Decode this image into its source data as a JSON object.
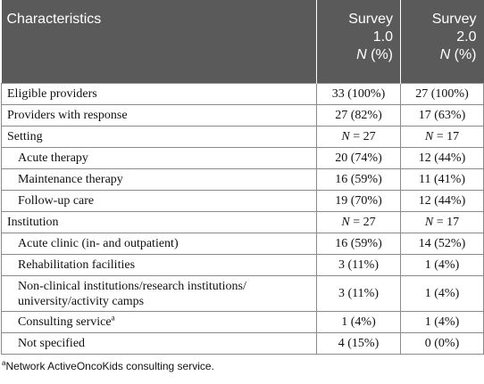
{
  "header": {
    "col1": "Characteristics",
    "col2_line1": "Survey",
    "col2_line2": "1.0",
    "col3_line1": "Survey",
    "col3_line2": "2.0",
    "n_label": "N",
    "pct_label": " (%)"
  },
  "rows": [
    {
      "label": "Eligible providers",
      "v1": "33 (100%)",
      "v2": "27 (100%)"
    },
    {
      "label": "Providers with response",
      "v1": "27 (82%)",
      "v2": "17 (63%)"
    },
    {
      "label": "Setting",
      "v1_n": "N",
      "v1_rest": " = 27",
      "v2_n": "N",
      "v2_rest": " = 17"
    },
    {
      "label": "Acute therapy",
      "v1": "20 (74%)",
      "v2": "12 (44%)"
    },
    {
      "label": "Maintenance therapy",
      "v1": "16 (59%)",
      "v2": "11 (41%)"
    },
    {
      "label": "Follow-up care",
      "v1": "19 (70%)",
      "v2": "12 (44%)"
    },
    {
      "label": "Institution",
      "v1_n": "N",
      "v1_rest": " = 27",
      "v2_n": "N",
      "v2_rest": " = 17"
    },
    {
      "label": "Acute clinic (in- and outpatient)",
      "v1": "16 (59%)",
      "v2": "14 (52%)"
    },
    {
      "label": "Rehabilitation facilities",
      "v1": "3 (11%)",
      "v2": "1 (4%)"
    },
    {
      "label_line1": "Non-clinical institutions/research institutions/",
      "label_line2": "university/activity camps",
      "v1": "3 (11%)",
      "v2": "1 (4%)"
    },
    {
      "label": "Consulting service",
      "sup": "a",
      "v1": "1 (4%)",
      "v2": "1 (4%)"
    },
    {
      "label": "Not specified",
      "v1": "4 (15%)",
      "v2": "0 (0%)"
    }
  ],
  "footnote": {
    "sup": "a",
    "text": "Network ActiveOncoKids consulting service."
  }
}
